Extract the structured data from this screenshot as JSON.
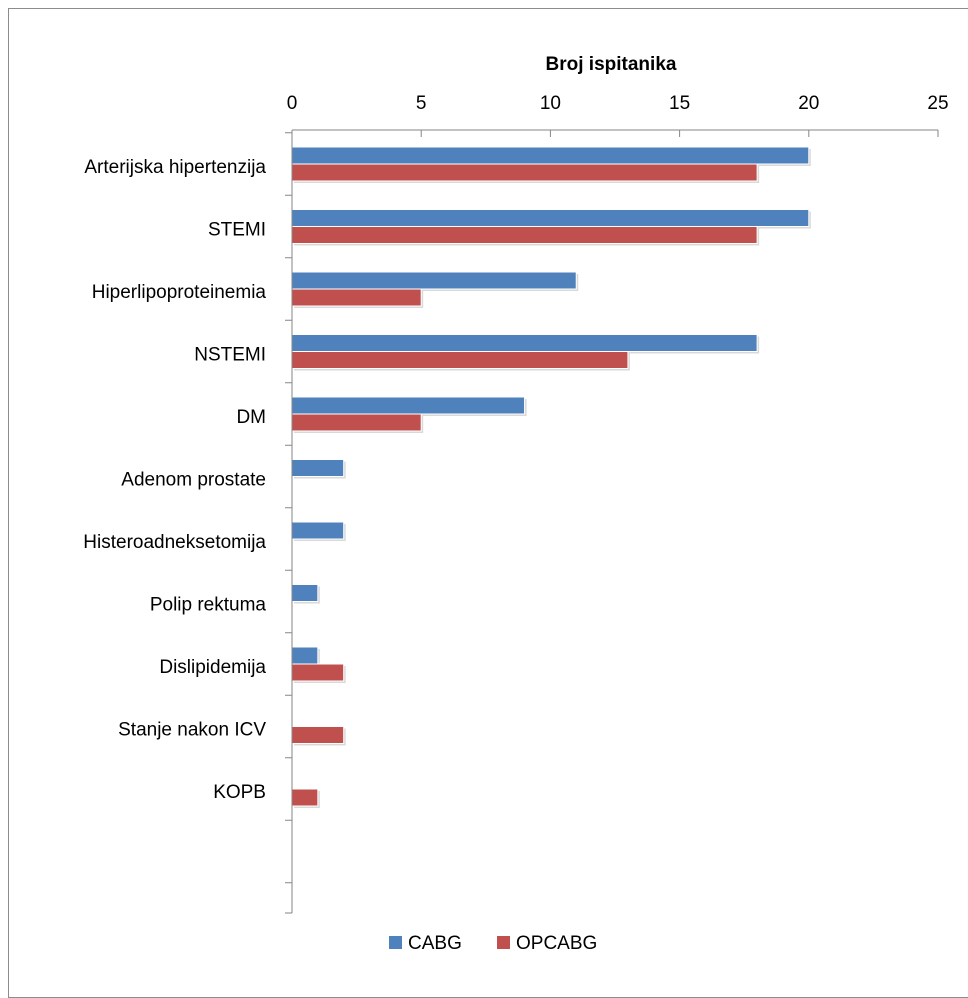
{
  "chart_data": {
    "type": "bar",
    "orientation": "horizontal",
    "title": "",
    "xlabel": "Broj ispitanika",
    "ylabel": "",
    "xlim": [
      0,
      25
    ],
    "ticks": [
      0,
      5,
      10,
      15,
      20,
      25
    ],
    "tick_labels": [
      "0",
      "5",
      "10",
      "15",
      "20",
      "25"
    ],
    "grid": false,
    "legend_position": "bottom",
    "categories": [
      "Arterijska hipertenzija",
      "STEMI",
      "Hiperlipoproteinemia",
      "NSTEMI",
      "DM",
      "Adenom prostate",
      "Histeroadneksetomija",
      "Polip rektuma",
      "Dislipidemija",
      "Stanje nakon ICV",
      "KOPB"
    ],
    "series": [
      {
        "name": "CABG",
        "color": "#4f81bd",
        "values": [
          20,
          20,
          11,
          18,
          9,
          2,
          2,
          1,
          1,
          0,
          0
        ]
      },
      {
        "name": "OPCABG",
        "color": "#c0504d",
        "values": [
          18,
          18,
          5,
          13,
          5,
          0,
          0,
          0,
          2,
          2,
          1
        ]
      }
    ]
  }
}
